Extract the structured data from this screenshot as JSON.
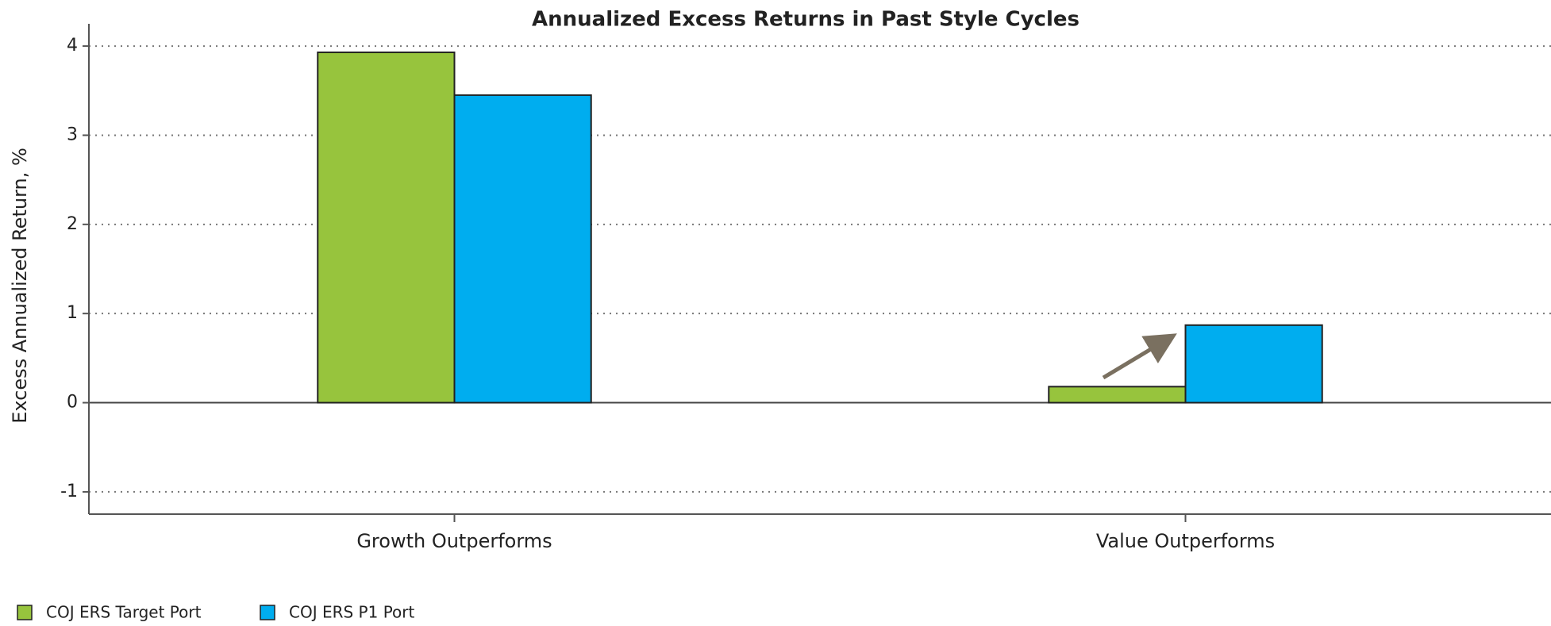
{
  "chart_data": {
    "type": "bar",
    "title": "Annualized Excess Returns in Past Style Cycles",
    "y_label": "Excess Annualized Return, %",
    "categories": [
      "Growth Outperforms",
      "Value Outperforms"
    ],
    "series": [
      {
        "name": "COJ ERS Target Port",
        "color": "#97c43d",
        "values": [
          3.93,
          0.18
        ]
      },
      {
        "name": "COJ ERS P1 Port",
        "color": "#00adef",
        "values": [
          3.45,
          0.87
        ]
      }
    ],
    "ylim": [
      -1.25,
      4.25
    ],
    "yticks": [
      -1,
      0,
      1,
      2,
      3,
      4
    ],
    "grid": true,
    "legend": "bottom-left"
  }
}
